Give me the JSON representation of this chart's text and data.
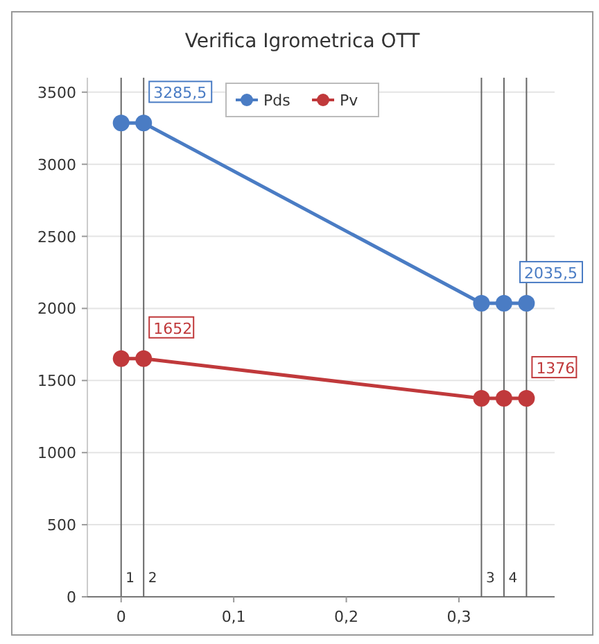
{
  "chart_data": {
    "type": "line",
    "title": "Verifica Igrometrica OTT",
    "x": [
      0,
      0.02,
      0.32,
      0.34,
      0.36
    ],
    "series": [
      {
        "name": "Pds",
        "color": "#4a7cc4",
        "values": [
          3285.5,
          3285.5,
          2035.5,
          2035.5,
          2035.5
        ],
        "value_labels": [
          null,
          "3285,5",
          null,
          null,
          "2035,5"
        ]
      },
      {
        "name": "Pv",
        "color": "#c0393b",
        "values": [
          1652,
          1652,
          1376,
          1376,
          1376
        ],
        "value_labels": [
          null,
          "1652",
          null,
          null,
          "1376"
        ]
      }
    ],
    "xlim": [
      -0.03,
      0.385
    ],
    "ylim": [
      0,
      3600
    ],
    "xticks": [
      0,
      {
        "value": 0.1,
        "label": "0,1"
      },
      {
        "value": 0.2,
        "label": "0,2"
      },
      {
        "value": 0.3,
        "label": "0,3"
      }
    ],
    "yticks": [
      0,
      500,
      1000,
      1500,
      2000,
      2500,
      3000,
      3500
    ],
    "ref_lines": [
      {
        "axis": "x",
        "value": 0,
        "label": null
      },
      {
        "axis": "x",
        "value": 0.02,
        "label": null
      },
      {
        "axis": "x",
        "value": 0.32,
        "label": null
      },
      {
        "axis": "x",
        "value": 0.34,
        "label": null
      },
      {
        "axis": "x",
        "value": 0.36,
        "label": null
      }
    ],
    "annotations": [
      {
        "text": "1",
        "x": 0.004,
        "y": 100
      },
      {
        "text": "2",
        "x": 0.024,
        "y": 100
      },
      {
        "text": "3",
        "x": 0.324,
        "y": 100
      },
      {
        "text": "4",
        "x": 0.344,
        "y": 100
      }
    ],
    "grid": "y",
    "legend": "top",
    "marker": "circle",
    "line_style": "solid"
  }
}
